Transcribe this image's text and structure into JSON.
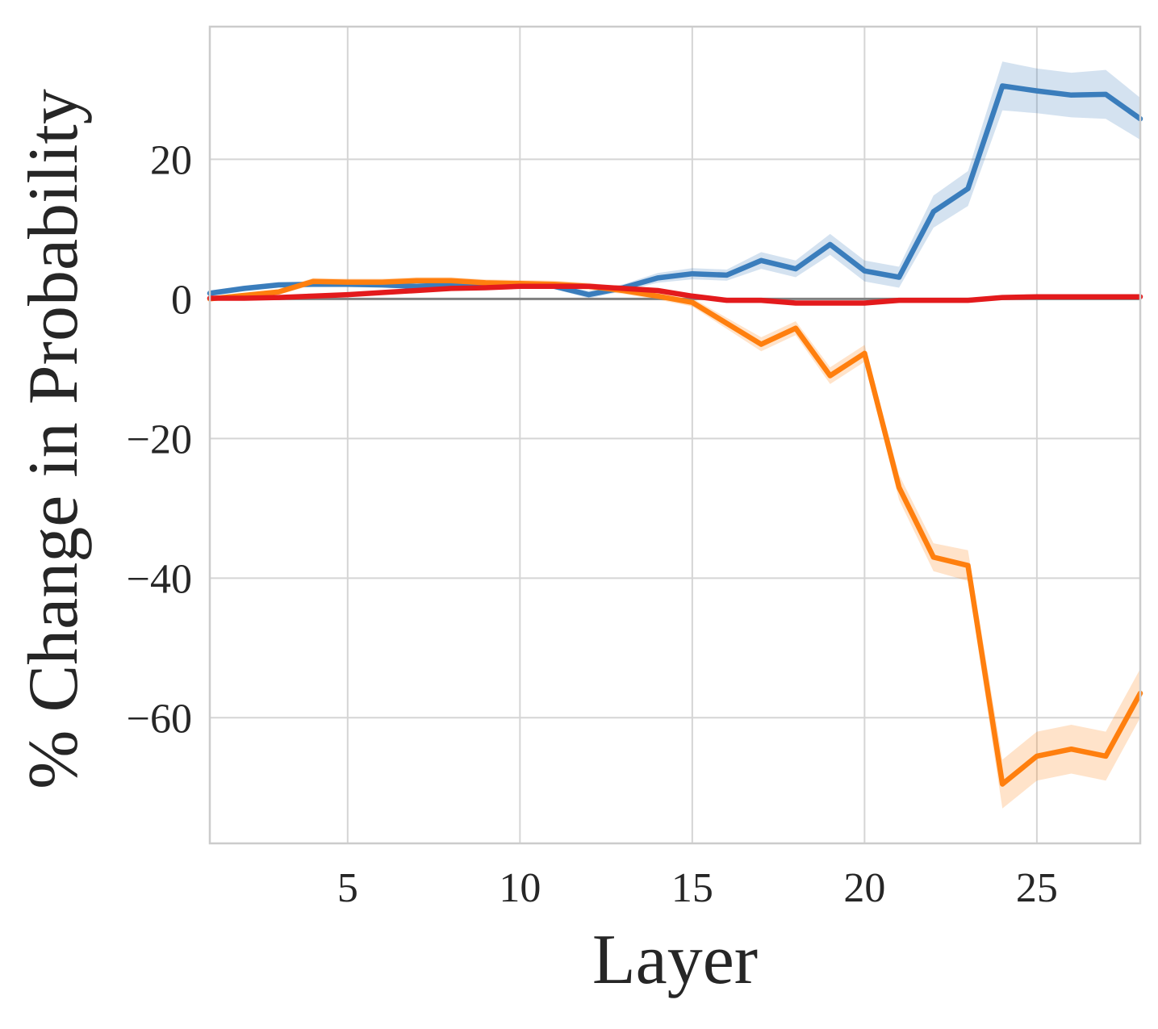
{
  "chart_data": {
    "type": "line",
    "title": "",
    "xlabel": "Layer",
    "ylabel": "% Change in Probability",
    "xlim": [
      1,
      28
    ],
    "ylim": [
      -78,
      39
    ],
    "xticks": [
      5,
      10,
      15,
      20,
      25
    ],
    "yticks": [
      -60,
      -40,
      -20,
      0,
      20
    ],
    "ytick_labels": [
      "−60",
      "−40",
      "−20",
      "0",
      "20"
    ],
    "grid": true,
    "legend": "none",
    "reference_line": {
      "y": 0,
      "color": "#808080"
    },
    "x": [
      1,
      2,
      3,
      4,
      5,
      6,
      7,
      8,
      9,
      10,
      11,
      12,
      13,
      14,
      15,
      16,
      17,
      18,
      19,
      20,
      21,
      22,
      23,
      24,
      25,
      26,
      27,
      28
    ],
    "series": [
      {
        "color": "#3a7dbc",
        "values": [
          0.8,
          1.5,
          2.0,
          2.1,
          2.1,
          2.0,
          1.8,
          2.0,
          2.0,
          2.0,
          1.8,
          0.6,
          1.6,
          3.0,
          3.6,
          3.4,
          5.5,
          4.3,
          7.8,
          4.0,
          3.1,
          12.5,
          15.8,
          30.5,
          29.8,
          29.2,
          29.3,
          25.8
        ],
        "band": [
          0.4,
          0.4,
          0.4,
          0.4,
          0.4,
          0.4,
          0.4,
          0.4,
          0.4,
          0.4,
          0.4,
          0.5,
          0.5,
          0.7,
          0.8,
          0.8,
          1.2,
          1.2,
          1.5,
          1.5,
          1.5,
          2.3,
          2.5,
          3.5,
          3.2,
          3.2,
          3.5,
          3.0
        ]
      },
      {
        "color": "#ff7f0e",
        "values": [
          0.0,
          0.5,
          1.0,
          2.5,
          2.4,
          2.4,
          2.6,
          2.6,
          2.3,
          2.2,
          2.1,
          1.8,
          1.2,
          0.4,
          -0.5,
          -3.5,
          -6.5,
          -4.2,
          -11.0,
          -7.8,
          -27.0,
          -37.0,
          -38.2,
          -69.5,
          -65.5,
          -64.5,
          -65.5,
          -56.5
        ],
        "band": [
          0.3,
          0.3,
          0.4,
          0.5,
          0.5,
          0.5,
          0.5,
          0.5,
          0.5,
          0.5,
          0.5,
          0.5,
          0.5,
          0.5,
          0.6,
          0.8,
          1.0,
          1.0,
          1.2,
          1.2,
          1.8,
          2.0,
          2.2,
          3.5,
          3.5,
          3.5,
          3.5,
          3.5
        ]
      },
      {
        "color": "#e31a1c",
        "values": [
          0.1,
          0.1,
          0.2,
          0.4,
          0.6,
          0.9,
          1.2,
          1.5,
          1.6,
          1.8,
          1.8,
          1.8,
          1.5,
          1.2,
          0.4,
          -0.2,
          -0.2,
          -0.6,
          -0.6,
          -0.6,
          -0.2,
          -0.2,
          -0.2,
          0.2,
          0.3,
          0.3,
          0.3,
          0.3
        ],
        "band": [
          0.1,
          0.1,
          0.1,
          0.1,
          0.1,
          0.1,
          0.1,
          0.1,
          0.1,
          0.1,
          0.1,
          0.1,
          0.1,
          0.1,
          0.1,
          0.1,
          0.1,
          0.2,
          0.2,
          0.2,
          0.1,
          0.1,
          0.1,
          0.1,
          0.1,
          0.1,
          0.1,
          0.1
        ]
      }
    ]
  }
}
